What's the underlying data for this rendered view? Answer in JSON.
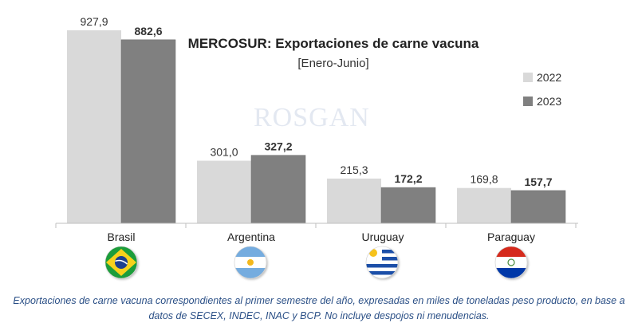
{
  "chart_data": {
    "type": "bar",
    "title": "MERCOSUR: Exportaciones de carne vacuna",
    "subtitle": "[Enero-Junio]",
    "categories": [
      "Brasil",
      "Argentina",
      "Uruguay",
      "Paraguay"
    ],
    "series": [
      {
        "name": "2022",
        "values": [
          927.9,
          301.0,
          215.3,
          169.8
        ],
        "labels": [
          "927,9",
          "301,0",
          "215,3",
          "169,8"
        ],
        "color": "#d9d9d9"
      },
      {
        "name": "2023",
        "values": [
          882.6,
          327.2,
          172.2,
          157.7
        ],
        "labels": [
          "882,6",
          "327,2",
          "172,2",
          "157,7"
        ],
        "color": "#808080"
      }
    ],
    "ylim": [
      0,
      960
    ],
    "grid": false,
    "legend_position": "right",
    "watermark": "ROSGAN",
    "flag_icons": [
      "brazil-flag-icon",
      "argentina-flag-icon",
      "uruguay-flag-icon",
      "paraguay-flag-icon"
    ]
  },
  "footnote": "Exportaciones de carne vacuna correspondientes al primer semestre del año, expresadas en miles de toneladas peso producto, en base a datos de SECEX, INDEC, INAC y BCP. No incluye despojos ni menudencias."
}
